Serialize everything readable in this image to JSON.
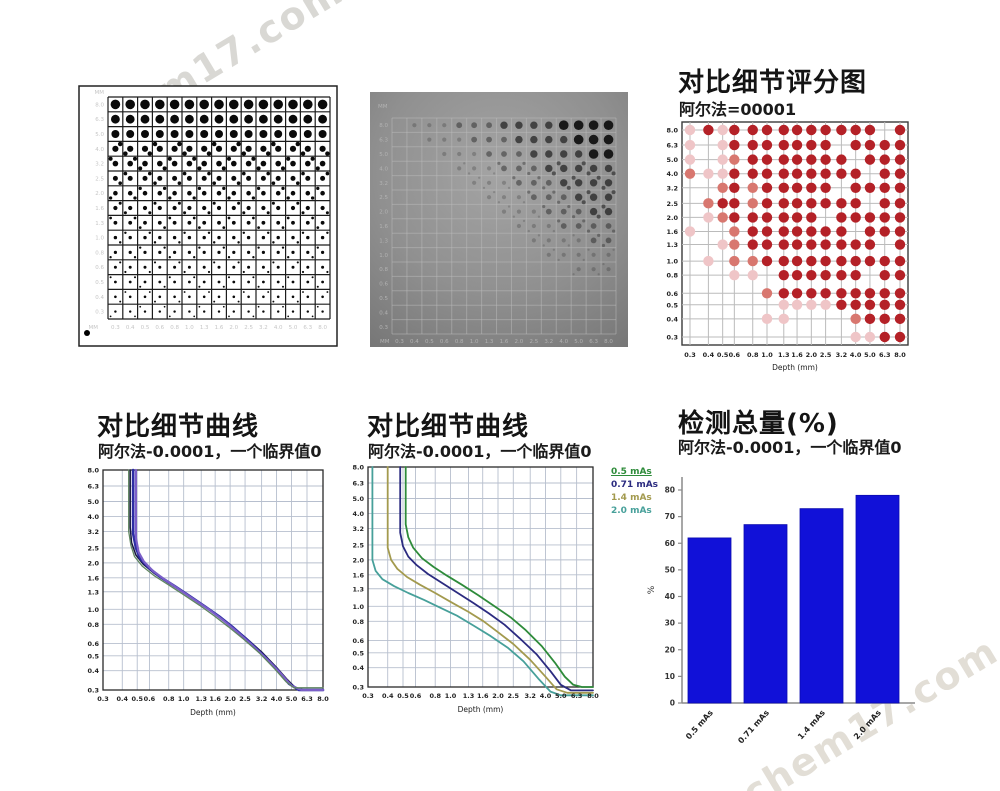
{
  "watermark": {
    "text": "chem17.com"
  },
  "axes": {
    "depth_ticks": [
      0.3,
      0.4,
      0.5,
      0.6,
      0.8,
      1.0,
      1.3,
      1.6,
      2.0,
      2.5,
      3.2,
      4.0,
      5.0,
      6.3,
      8.0
    ],
    "depth_tick_labels": [
      "0.3",
      "0.4",
      "0.5",
      "0.6",
      "0.8",
      "1.0",
      "1.3",
      "1.6",
      "2.0",
      "2.5",
      "3.2",
      "4.0",
      "5.0",
      "6.3",
      "8.0"
    ],
    "diameter_ticks_desc": [
      8.0,
      6.3,
      5.0,
      4.0,
      3.2,
      2.5,
      2.0,
      1.6,
      1.3,
      1.0,
      0.8,
      0.6,
      0.5,
      0.4,
      0.3
    ],
    "diameter_tick_labels_desc": [
      "8.0",
      "6.3",
      "5.0",
      "4.0",
      "3.2",
      "2.5",
      "2.0",
      "1.6",
      "1.3",
      "1.0",
      "0.8",
      "0.6",
      "0.5",
      "0.4",
      "0.3"
    ],
    "depth_axis_label": "Depth (mm)",
    "unit_label": "MM"
  },
  "phantoms": {
    "schematic": {
      "rows": 15,
      "cols": 15,
      "row_dot_radii": [
        4.8,
        4.4,
        4.0,
        3.1,
        2.8,
        2.5,
        2.3,
        2.1,
        1.9,
        1.7,
        1.6,
        1.5,
        1.4,
        1.3,
        1.2
      ],
      "corner_dots_from_row": 4,
      "label_color": "#c6c6c6",
      "line_color": "#1c1c1c"
    },
    "radiograph": {
      "grid": [
        "011122233334444",
        "001112223333444",
        "000111222333344",
        "000011122233333",
        "000001112223333",
        "000000111222333",
        "000000011122233",
        "000000001112222",
        "000000000111122",
        "000000000011111",
        "000000000000111",
        "000000000000000",
        "000000000000000",
        "000000000000000",
        "000000000000000"
      ],
      "level_opacity": [
        0,
        0.22,
        0.42,
        0.65,
        0.95
      ],
      "level_radius": [
        0,
        2.1,
        2.9,
        3.7,
        4.8
      ],
      "dot_color": "#121212",
      "label_color": "#b2b2b2"
    }
  },
  "chart_data": [
    {
      "id": "score_map",
      "type": "heatmap",
      "title": "对比细节评分图",
      "subtitle": "阿尔法=00001",
      "xlabel": "Depth (mm)",
      "x_scale": "log",
      "y_scale": "log",
      "grid_on": true,
      "level_colors": [
        "none",
        "#efc5c7",
        "#d8776f",
        "#b42127"
      ],
      "grid_levels": [
        "131333333333303",
        "101333333303333",
        "101233333330333",
        "211333333333033",
        "002323333303333",
        "023323333333033",
        "012333333033333",
        "100233333330333",
        "001233333333303",
        "010223333333333",
        "000110333333033",
        "000002333333333",
        "000000111133333",
        "000001100002333",
        "000000000001133"
      ]
    },
    {
      "id": "cd_curves_combined",
      "type": "line",
      "title": "对比细节曲线",
      "subtitle": "阿尔法-0.0001，一个临界值0",
      "xlabel": "Depth (mm)",
      "x_scale": "log",
      "y_scale": "log",
      "xlim": [
        0.3,
        8.0
      ],
      "ylim": [
        0.3,
        8.0
      ],
      "grid_on": true,
      "series": [
        {
          "color": "#181840",
          "width": 1.5,
          "points": [
            [
              0.45,
              8
            ],
            [
              0.45,
              3.4
            ],
            [
              0.46,
              2.7
            ],
            [
              0.49,
              2.25
            ],
            [
              0.55,
              1.95
            ],
            [
              0.65,
              1.7
            ],
            [
              0.8,
              1.48
            ],
            [
              1.0,
              1.28
            ],
            [
              1.3,
              1.08
            ],
            [
              1.6,
              0.93
            ],
            [
              2.0,
              0.79
            ],
            [
              2.5,
              0.66
            ],
            [
              3.2,
              0.53
            ],
            [
              4.0,
              0.42
            ],
            [
              4.7,
              0.35
            ],
            [
              5.3,
              0.31
            ],
            [
              6.0,
              0.3
            ],
            [
              8,
              0.3
            ]
          ]
        },
        {
          "color": "#2d2da4",
          "width": 2.6,
          "points": [
            [
              0.47,
              8
            ],
            [
              0.47,
              3.1
            ],
            [
              0.49,
              2.5
            ],
            [
              0.52,
              2.15
            ],
            [
              0.59,
              1.87
            ],
            [
              0.7,
              1.63
            ],
            [
              0.87,
              1.42
            ],
            [
              1.08,
              1.23
            ],
            [
              1.38,
              1.04
            ],
            [
              1.7,
              0.9
            ],
            [
              2.1,
              0.76
            ],
            [
              2.6,
              0.63
            ],
            [
              3.3,
              0.5
            ],
            [
              4.1,
              0.4
            ],
            [
              4.8,
              0.33
            ],
            [
              5.6,
              0.3
            ],
            [
              8,
              0.3
            ]
          ]
        },
        {
          "color": "#7b5fc8",
          "width": 2.2,
          "points": [
            [
              0.49,
              8
            ],
            [
              0.49,
              2.9
            ],
            [
              0.51,
              2.35
            ],
            [
              0.55,
              2.05
            ],
            [
              0.63,
              1.78
            ],
            [
              0.76,
              1.55
            ],
            [
              0.93,
              1.35
            ],
            [
              1.15,
              1.17
            ],
            [
              1.45,
              1.0
            ],
            [
              1.8,
              0.85
            ],
            [
              2.2,
              0.72
            ],
            [
              2.75,
              0.59
            ],
            [
              3.5,
              0.47
            ],
            [
              4.3,
              0.38
            ],
            [
              5.0,
              0.32
            ],
            [
              5.8,
              0.3
            ],
            [
              8,
              0.3
            ]
          ]
        },
        {
          "color": "#5f8560",
          "width": 1.3,
          "points": [
            [
              0.44,
              8
            ],
            [
              0.44,
              3.2
            ],
            [
              0.455,
              2.6
            ],
            [
              0.48,
              2.2
            ],
            [
              0.54,
              1.9
            ],
            [
              0.64,
              1.66
            ],
            [
              0.79,
              1.45
            ],
            [
              0.98,
              1.26
            ],
            [
              1.27,
              1.06
            ],
            [
              1.57,
              0.91
            ],
            [
              1.95,
              0.77
            ],
            [
              2.45,
              0.64
            ],
            [
              3.1,
              0.52
            ],
            [
              3.9,
              0.41
            ],
            [
              4.6,
              0.34
            ],
            [
              5.2,
              0.31
            ],
            [
              8,
              0.31
            ]
          ]
        }
      ]
    },
    {
      "id": "cd_curves_by_dose",
      "type": "line",
      "title": "对比细节曲线",
      "subtitle": "阿尔法-0.0001，一个临界值0",
      "xlabel": "Depth (mm)",
      "x_scale": "log",
      "y_scale": "log",
      "xlim": [
        0.3,
        8.0
      ],
      "ylim": [
        0.3,
        8.0
      ],
      "grid_on": true,
      "legend_position": "right",
      "series": [
        {
          "name": "0.5 mAs",
          "color": "#2e8b3a",
          "width": 1.8,
          "underline": true,
          "points": [
            [
              0.52,
              8
            ],
            [
              0.52,
              3.4
            ],
            [
              0.54,
              2.8
            ],
            [
              0.58,
              2.4
            ],
            [
              0.66,
              2.05
            ],
            [
              0.78,
              1.8
            ],
            [
              0.95,
              1.58
            ],
            [
              1.18,
              1.38
            ],
            [
              1.5,
              1.18
            ],
            [
              1.9,
              1.0
            ],
            [
              2.4,
              0.85
            ],
            [
              3.0,
              0.7
            ],
            [
              3.8,
              0.55
            ],
            [
              4.6,
              0.43
            ],
            [
              5.3,
              0.35
            ],
            [
              6.0,
              0.31
            ],
            [
              6.8,
              0.3
            ],
            [
              8,
              0.3
            ]
          ]
        },
        {
          "name": "0.71 mAs",
          "color": "#2b2b80",
          "width": 1.8,
          "underline": false,
          "points": [
            [
              0.48,
              8
            ],
            [
              0.48,
              3.0
            ],
            [
              0.5,
              2.45
            ],
            [
              0.54,
              2.1
            ],
            [
              0.61,
              1.85
            ],
            [
              0.72,
              1.62
            ],
            [
              0.88,
              1.42
            ],
            [
              1.1,
              1.23
            ],
            [
              1.4,
              1.05
            ],
            [
              1.75,
              0.9
            ],
            [
              2.2,
              0.76
            ],
            [
              2.75,
              0.62
            ],
            [
              3.5,
              0.49
            ],
            [
              4.3,
              0.38
            ],
            [
              5.0,
              0.31
            ],
            [
              5.8,
              0.285
            ],
            [
              8,
              0.285
            ]
          ]
        },
        {
          "name": "1.4 mAs",
          "color": "#a39a4e",
          "width": 1.8,
          "underline": false,
          "points": [
            [
              0.4,
              8
            ],
            [
              0.4,
              2.4
            ],
            [
              0.42,
              2.0
            ],
            [
              0.46,
              1.75
            ],
            [
              0.53,
              1.55
            ],
            [
              0.64,
              1.38
            ],
            [
              0.8,
              1.22
            ],
            [
              1.0,
              1.07
            ],
            [
              1.3,
              0.92
            ],
            [
              1.62,
              0.8
            ],
            [
              2.0,
              0.68
            ],
            [
              2.5,
              0.57
            ],
            [
              3.2,
              0.45
            ],
            [
              4.0,
              0.35
            ],
            [
              4.7,
              0.29
            ],
            [
              5.5,
              0.275
            ],
            [
              8,
              0.275
            ]
          ]
        },
        {
          "name": "2.0 mAs",
          "color": "#47a09a",
          "width": 1.8,
          "underline": false,
          "points": [
            [
              0.32,
              8
            ],
            [
              0.32,
              2.0
            ],
            [
              0.335,
              1.7
            ],
            [
              0.37,
              1.5
            ],
            [
              0.44,
              1.35
            ],
            [
              0.54,
              1.22
            ],
            [
              0.68,
              1.1
            ],
            [
              0.86,
              0.98
            ],
            [
              1.1,
              0.87
            ],
            [
              1.4,
              0.75
            ],
            [
              1.8,
              0.64
            ],
            [
              2.3,
              0.54
            ],
            [
              2.9,
              0.44
            ],
            [
              3.6,
              0.34
            ],
            [
              4.3,
              0.28
            ],
            [
              5.0,
              0.265
            ],
            [
              8,
              0.265
            ]
          ]
        }
      ]
    },
    {
      "id": "detection_total",
      "type": "bar",
      "title": "检测总量(%)",
      "subtitle": "阿尔法-0.0001，一个临界值0",
      "ylabel": "%",
      "categories": [
        "0.5 mAs",
        "0.71 mAs",
        "1.4 mAs",
        "2.0 mAs"
      ],
      "values": [
        62,
        67,
        73,
        78
      ],
      "yticks": [
        0,
        10,
        20,
        30,
        40,
        50,
        60,
        70,
        80
      ],
      "ylim": [
        0,
        80
      ],
      "bar_color": "#1111d8",
      "axis_color": "#8a8a8a"
    }
  ]
}
